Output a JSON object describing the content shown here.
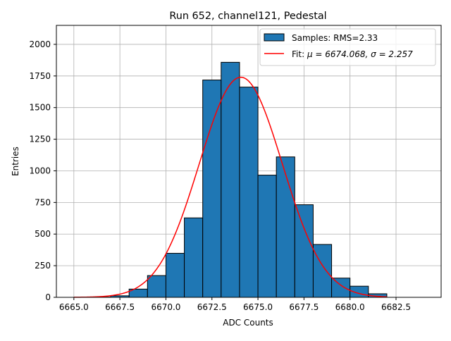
{
  "chart_data": {
    "type": "bar",
    "title": "Run 652, channel121, Pedestal",
    "xlabel": "ADC Counts",
    "ylabel": "Entries",
    "xlim": [
      6664.05,
      6684.95
    ],
    "ylim": [
      0,
      2150
    ],
    "xticks": [
      6665.0,
      6667.5,
      6670.0,
      6672.5,
      6675.0,
      6677.5,
      6680.0,
      6682.5
    ],
    "xtick_labels": [
      "6665.0",
      "6667.5",
      "6670.0",
      "6672.5",
      "6675.0",
      "6677.5",
      "6680.0",
      "6682.5"
    ],
    "yticks": [
      0,
      250,
      500,
      750,
      1000,
      1250,
      1500,
      1750,
      2000
    ],
    "ytick_labels": [
      "0",
      "250",
      "500",
      "750",
      "1000",
      "1250",
      "1500",
      "1750",
      "2000"
    ],
    "grid": true,
    "legend_position": "top-right",
    "histogram": {
      "name": "Samples: RMS=2.33",
      "color": "#1f77b4",
      "edge_color": "#000000",
      "bin_edges": [
        6665,
        6666,
        6667,
        6668,
        6669,
        6670,
        6671,
        6672,
        6673,
        6674,
        6675,
        6676,
        6677,
        6678,
        6679,
        6680,
        6681,
        6682,
        6683,
        6684
      ],
      "counts": [
        0,
        2,
        12,
        65,
        172,
        348,
        628,
        1718,
        1858,
        1662,
        966,
        1110,
        732,
        418,
        152,
        88,
        28,
        0,
        0
      ]
    },
    "fit": {
      "name_prefix": "Fit: ",
      "name_math": "μ = 6674.068, σ = 2.257",
      "color": "#ff0000",
      "mu": 6674.068,
      "sigma": 2.257,
      "amplitude": 1740,
      "x_range": [
        6665,
        6682
      ]
    }
  }
}
